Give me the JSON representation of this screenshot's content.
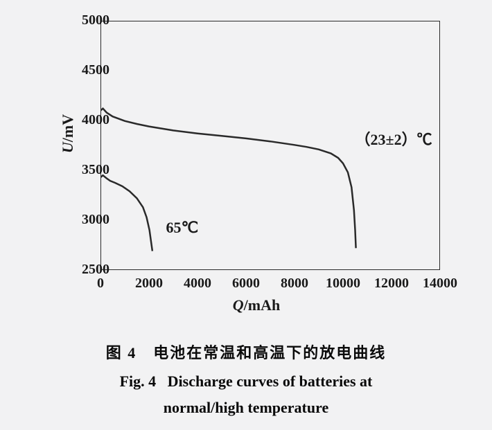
{
  "chart": {
    "type": "line",
    "background_color": "#f2f2f3",
    "line_color": "#2a2a2a",
    "text_color": "#1a1a1a",
    "axis_line_width": 2,
    "curve_line_width": 2.5,
    "x_axis": {
      "title_var": "Q",
      "title_unit": "/mAh",
      "min": 0,
      "max": 14000,
      "ticks": [
        0,
        2000,
        4000,
        6000,
        8000,
        10000,
        12000,
        14000
      ],
      "tick_fontsize": 20,
      "title_fontsize": 22
    },
    "y_axis": {
      "title_var": "U",
      "title_unit": "/mV",
      "min": 2500,
      "max": 5000,
      "ticks": [
        2500,
        3000,
        3500,
        4000,
        4500,
        5000
      ],
      "tick_fontsize": 20,
      "title_fontsize": 22
    },
    "series": [
      {
        "label": "（23±2）℃",
        "label_x": 10500,
        "label_y": 3850,
        "data": [
          [
            0,
            4100
          ],
          [
            100,
            4120
          ],
          [
            250,
            4080
          ],
          [
            500,
            4040
          ],
          [
            1000,
            3995
          ],
          [
            1500,
            3965
          ],
          [
            2000,
            3940
          ],
          [
            3000,
            3900
          ],
          [
            4000,
            3870
          ],
          [
            5000,
            3845
          ],
          [
            6000,
            3820
          ],
          [
            7000,
            3790
          ],
          [
            8000,
            3755
          ],
          [
            8500,
            3735
          ],
          [
            9000,
            3710
          ],
          [
            9500,
            3670
          ],
          [
            9800,
            3625
          ],
          [
            10000,
            3570
          ],
          [
            10200,
            3480
          ],
          [
            10350,
            3330
          ],
          [
            10450,
            3100
          ],
          [
            10500,
            2900
          ],
          [
            10530,
            2720
          ]
        ]
      },
      {
        "label": "65℃",
        "label_x": 2700,
        "label_y": 2930,
        "data": [
          [
            0,
            3430
          ],
          [
            100,
            3450
          ],
          [
            250,
            3420
          ],
          [
            400,
            3395
          ],
          [
            600,
            3375
          ],
          [
            900,
            3340
          ],
          [
            1200,
            3290
          ],
          [
            1500,
            3220
          ],
          [
            1750,
            3130
          ],
          [
            1900,
            3030
          ],
          [
            2020,
            2900
          ],
          [
            2100,
            2760
          ],
          [
            2140,
            2690
          ]
        ]
      }
    ]
  },
  "captions": {
    "cn_prefix": "图 4",
    "cn_text": "电池在常温和高温下的放电曲线",
    "en_prefix": "Fig. 4",
    "en_line1": "Discharge curves of batteries at",
    "en_line2": "normal/high temperature",
    "fontsize": 22
  }
}
